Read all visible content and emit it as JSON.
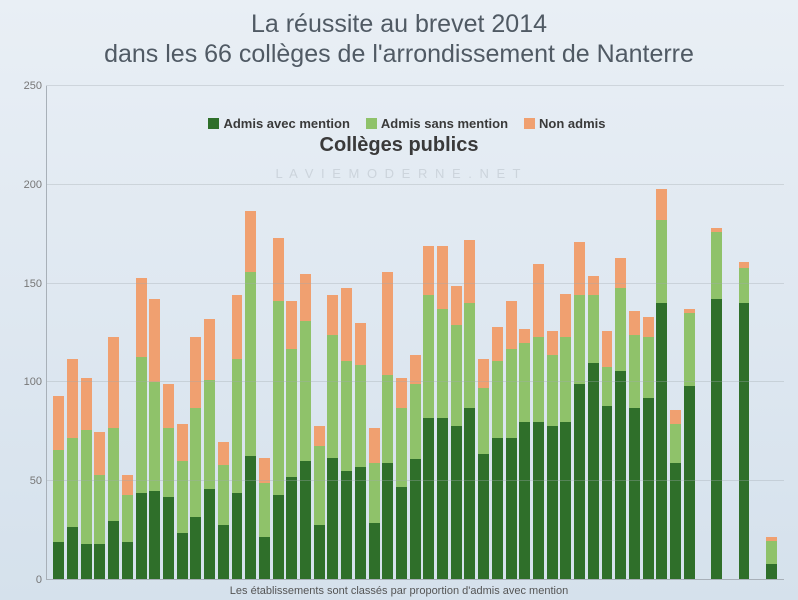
{
  "title_line1": "La réussite au brevet 2014",
  "title_line2": "dans les 66 collèges de l'arrondissement de Nanterre",
  "title_fontsize": 25,
  "title_color": "#505a64",
  "subtitle": "Collèges publics",
  "subtitle_fontsize": 20,
  "watermark": "L A V I E M O D E R N E . N E T",
  "footnote": "Les établissements sont classés par proportion d'admis avec mention",
  "background_gradient_top": "#e9eff5",
  "background_gradient_bottom": "#d5e1ec",
  "chart": {
    "type": "stacked-bar",
    "ymin": 0,
    "ymax": 250,
    "yticks": [
      0,
      50,
      100,
      150,
      200,
      250
    ],
    "grid_color": "rgba(160,168,176,0.35)",
    "axis_color": "#a8b0b8",
    "ylabel_color": "#777",
    "legend": [
      {
        "key": "mention",
        "label": "Admis avec mention",
        "color": "#2f6f2a"
      },
      {
        "key": "sans",
        "label": "Admis sans mention",
        "color": "#8fc26a"
      },
      {
        "key": "non",
        "label": "Non admis",
        "color": "#f0a070"
      }
    ],
    "series_order": [
      "mention",
      "sans",
      "non"
    ],
    "colors": {
      "mention": "#2f6f2a",
      "sans": "#8fc26a",
      "non": "#f0a070"
    },
    "gaps_after_index": [
      46,
      47,
      48
    ],
    "bars": [
      {
        "mention": 19,
        "sans": 47,
        "non": 27
      },
      {
        "mention": 27,
        "sans": 45,
        "non": 40
      },
      {
        "mention": 18,
        "sans": 58,
        "non": 26
      },
      {
        "mention": 18,
        "sans": 35,
        "non": 22
      },
      {
        "mention": 30,
        "sans": 47,
        "non": 46
      },
      {
        "mention": 19,
        "sans": 24,
        "non": 10
      },
      {
        "mention": 44,
        "sans": 69,
        "non": 40
      },
      {
        "mention": 45,
        "sans": 55,
        "non": 42
      },
      {
        "mention": 42,
        "sans": 35,
        "non": 22
      },
      {
        "mention": 24,
        "sans": 36,
        "non": 19
      },
      {
        "mention": 32,
        "sans": 55,
        "non": 36
      },
      {
        "mention": 46,
        "sans": 55,
        "non": 31
      },
      {
        "mention": 28,
        "sans": 30,
        "non": 12
      },
      {
        "mention": 44,
        "sans": 68,
        "non": 32
      },
      {
        "mention": 63,
        "sans": 93,
        "non": 31
      },
      {
        "mention": 22,
        "sans": 27,
        "non": 13
      },
      {
        "mention": 43,
        "sans": 98,
        "non": 32
      },
      {
        "mention": 52,
        "sans": 65,
        "non": 24
      },
      {
        "mention": 60,
        "sans": 71,
        "non": 24
      },
      {
        "mention": 28,
        "sans": 40,
        "non": 10
      },
      {
        "mention": 62,
        "sans": 62,
        "non": 20
      },
      {
        "mention": 55,
        "sans": 56,
        "non": 37
      },
      {
        "mention": 57,
        "sans": 52,
        "non": 21
      },
      {
        "mention": 29,
        "sans": 30,
        "non": 18
      },
      {
        "mention": 59,
        "sans": 45,
        "non": 52
      },
      {
        "mention": 47,
        "sans": 40,
        "non": 15
      },
      {
        "mention": 61,
        "sans": 38,
        "non": 15
      },
      {
        "mention": 82,
        "sans": 62,
        "non": 25
      },
      {
        "mention": 82,
        "sans": 55,
        "non": 32
      },
      {
        "mention": 78,
        "sans": 51,
        "non": 20
      },
      {
        "mention": 87,
        "sans": 53,
        "non": 32
      },
      {
        "mention": 64,
        "sans": 33,
        "non": 15
      },
      {
        "mention": 72,
        "sans": 39,
        "non": 17
      },
      {
        "mention": 72,
        "sans": 45,
        "non": 24
      },
      {
        "mention": 80,
        "sans": 40,
        "non": 7
      },
      {
        "mention": 80,
        "sans": 43,
        "non": 37
      },
      {
        "mention": 78,
        "sans": 36,
        "non": 12
      },
      {
        "mention": 80,
        "sans": 43,
        "non": 22
      },
      {
        "mention": 99,
        "sans": 45,
        "non": 27
      },
      {
        "mention": 110,
        "sans": 34,
        "non": 10
      },
      {
        "mention": 88,
        "sans": 20,
        "non": 18
      },
      {
        "mention": 106,
        "sans": 42,
        "non": 15
      },
      {
        "mention": 87,
        "sans": 37,
        "non": 12
      },
      {
        "mention": 92,
        "sans": 31,
        "non": 10
      },
      {
        "mention": 140,
        "sans": 42,
        "non": 16
      },
      {
        "mention": 59,
        "sans": 20,
        "non": 7
      },
      {
        "mention": 98,
        "sans": 37,
        "non": 2
      },
      {
        "mention": 142,
        "sans": 34,
        "non": 2
      },
      {
        "mention": 140,
        "sans": 18,
        "non": 3
      },
      {
        "mention": 8,
        "sans": 12,
        "non": 2
      }
    ]
  }
}
